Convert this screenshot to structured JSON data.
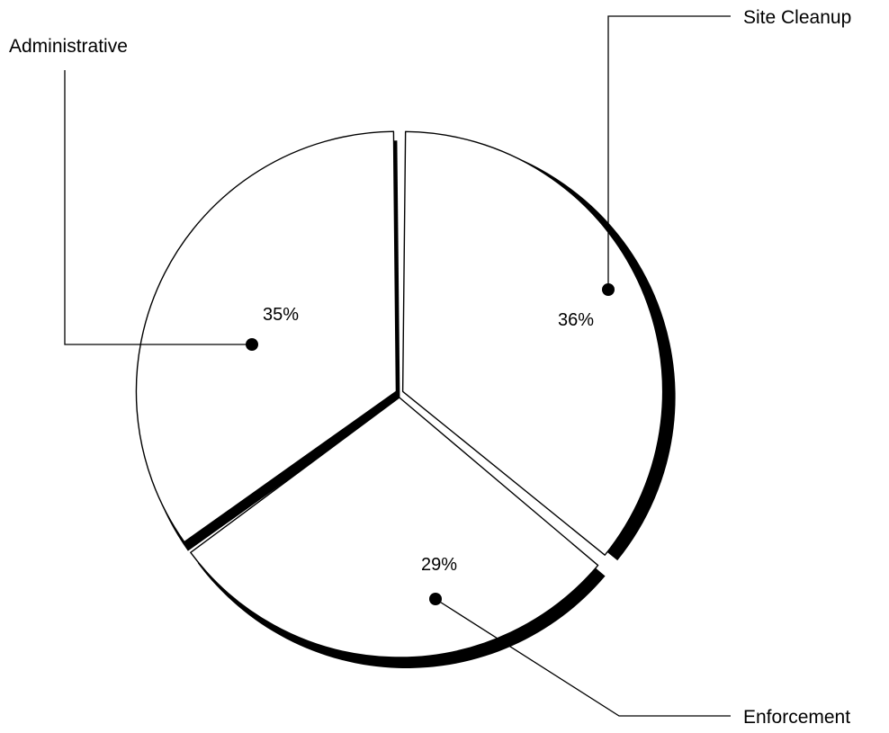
{
  "chart_data": {
    "type": "pie",
    "title": "",
    "series": [
      {
        "name": "Site Cleanup",
        "value": 36,
        "label": "36%"
      },
      {
        "name": "Enforcement",
        "value": 29,
        "label": "29%"
      },
      {
        "name": "Administrative",
        "value": 35,
        "label": "35%"
      }
    ],
    "legend": "callouts",
    "colors": {
      "fill": "#ffffff",
      "stroke": "#000000",
      "shadow": "#000000"
    }
  }
}
